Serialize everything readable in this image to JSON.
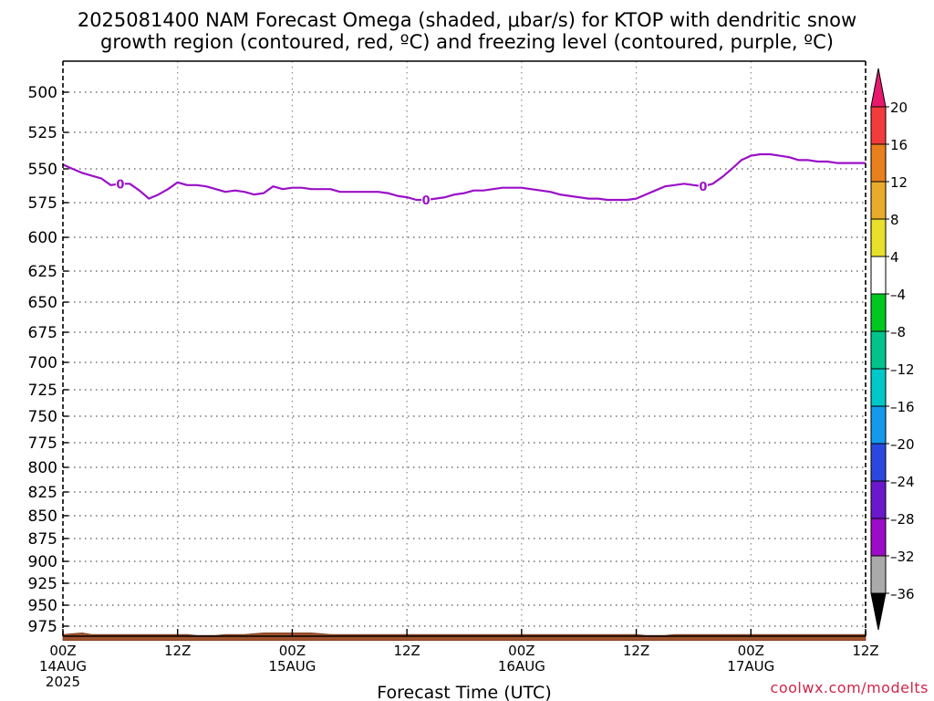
{
  "title_line1": "2025081400 NAM Forecast Omega (shaded, μbar/s) for KTOP with dendritic snow",
  "title_line2": "growth region (contoured, red, ºC) and freezing level (contoured, purple, ºC)",
  "credit": "coolwx.com/modelts",
  "chart_data": {
    "type": "line",
    "title": "2025081400 NAM Forecast Omega (shaded, μbar/s) for KTOP with dendritic snow growth region (contoured, red, ºC) and freezing level (contoured, purple, ºC)",
    "xlabel": "Forecast Time (UTC)",
    "ylabel": "",
    "x_unit": "hours from 2025-08-14 00Z",
    "xlim": [
      0,
      84
    ],
    "ylim": [
      1000,
      470
    ],
    "y_scale": "pressure (hPa), inverted",
    "grid": true,
    "x_ticks": [
      {
        "h": 0,
        "label": "00Z",
        "sub": "14AUG",
        "sub2": "2025"
      },
      {
        "h": 12,
        "label": "12Z",
        "sub": "",
        "sub2": ""
      },
      {
        "h": 24,
        "label": "00Z",
        "sub": "15AUG",
        "sub2": ""
      },
      {
        "h": 36,
        "label": "12Z",
        "sub": "",
        "sub2": ""
      },
      {
        "h": 48,
        "label": "00Z",
        "sub": "16AUG",
        "sub2": ""
      },
      {
        "h": 60,
        "label": "12Z",
        "sub": "",
        "sub2": ""
      },
      {
        "h": 72,
        "label": "00Z",
        "sub": "17AUG",
        "sub2": ""
      },
      {
        "h": 84,
        "label": "12Z",
        "sub": "",
        "sub2": ""
      }
    ],
    "y_ticks": [
      500,
      525,
      550,
      575,
      600,
      625,
      650,
      675,
      700,
      725,
      750,
      775,
      800,
      825,
      850,
      875,
      900,
      925,
      950,
      975
    ],
    "freezing_level": {
      "name": "freezing level",
      "color": "#9a10c8",
      "contour_label": "0",
      "label_at_h": [
        6,
        38,
        67
      ],
      "points": [
        [
          0,
          547
        ],
        [
          1,
          550
        ],
        [
          2,
          553
        ],
        [
          3,
          555
        ],
        [
          4,
          557
        ],
        [
          5,
          562
        ],
        [
          6,
          561
        ],
        [
          7,
          561
        ],
        [
          8,
          566
        ],
        [
          9,
          572
        ],
        [
          10,
          569
        ],
        [
          11,
          565
        ],
        [
          12,
          560
        ],
        [
          13,
          562
        ],
        [
          14,
          562
        ],
        [
          15,
          563
        ],
        [
          16,
          565
        ],
        [
          17,
          567
        ],
        [
          18,
          566
        ],
        [
          19,
          567
        ],
        [
          20,
          569
        ],
        [
          21,
          568
        ],
        [
          22,
          563
        ],
        [
          23,
          565
        ],
        [
          24,
          564
        ],
        [
          25,
          564
        ],
        [
          26,
          565
        ],
        [
          27,
          565
        ],
        [
          28,
          565
        ],
        [
          29,
          567
        ],
        [
          30,
          567
        ],
        [
          31,
          567
        ],
        [
          32,
          567
        ],
        [
          33,
          567
        ],
        [
          34,
          568
        ],
        [
          35,
          570
        ],
        [
          36,
          571
        ],
        [
          37,
          573
        ],
        [
          38,
          573
        ],
        [
          39,
          572
        ],
        [
          40,
          571
        ],
        [
          41,
          569
        ],
        [
          42,
          568
        ],
        [
          43,
          566
        ],
        [
          44,
          566
        ],
        [
          45,
          565
        ],
        [
          46,
          564
        ],
        [
          47,
          564
        ],
        [
          48,
          564
        ],
        [
          49,
          565
        ],
        [
          50,
          566
        ],
        [
          51,
          567
        ],
        [
          52,
          569
        ],
        [
          53,
          570
        ],
        [
          54,
          571
        ],
        [
          55,
          572
        ],
        [
          56,
          572
        ],
        [
          57,
          573
        ],
        [
          58,
          573
        ],
        [
          59,
          573
        ],
        [
          60,
          572
        ],
        [
          61,
          569
        ],
        [
          62,
          566
        ],
        [
          63,
          563
        ],
        [
          64,
          562
        ],
        [
          65,
          561
        ],
        [
          66,
          562
        ],
        [
          67,
          563
        ],
        [
          68,
          561
        ],
        [
          69,
          556
        ],
        [
          70,
          550
        ],
        [
          71,
          544
        ],
        [
          72,
          541
        ],
        [
          73,
          540
        ],
        [
          74,
          540
        ],
        [
          75,
          541
        ],
        [
          76,
          542
        ],
        [
          77,
          544
        ],
        [
          78,
          544
        ],
        [
          79,
          545
        ],
        [
          80,
          545
        ],
        [
          81,
          546
        ],
        [
          82,
          546
        ],
        [
          83,
          546
        ],
        [
          84,
          546
        ]
      ]
    },
    "terrain": {
      "name": "terrain",
      "color": "#a0522d",
      "points": [
        [
          0,
          985
        ],
        [
          1,
          984
        ],
        [
          2,
          983
        ],
        [
          3,
          985
        ],
        [
          8,
          985
        ],
        [
          12,
          985
        ],
        [
          13,
          985
        ],
        [
          14,
          986
        ],
        [
          16,
          986
        ],
        [
          17,
          985
        ],
        [
          19,
          985
        ],
        [
          20,
          984
        ],
        [
          21,
          983
        ],
        [
          26,
          983
        ],
        [
          27,
          984
        ],
        [
          28,
          985
        ],
        [
          40,
          985
        ],
        [
          60,
          985
        ],
        [
          61,
          986
        ],
        [
          63,
          986
        ],
        [
          64,
          985
        ],
        [
          84,
          985
        ]
      ],
      "bottom": 992
    },
    "colorbar": {
      "levels": [
        -36,
        -32,
        -28,
        -24,
        -20,
        -16,
        -12,
        -8,
        -4,
        4,
        8,
        12,
        16,
        20
      ],
      "colors": [
        "#000000",
        "#aaaaaa",
        "#9b0bc8",
        "#6a18cc",
        "#2a48e0",
        "#1499ec",
        "#00c8c8",
        "#00c48c",
        "#00c820",
        "#ffffff",
        "#e8e02a",
        "#e8ac2a",
        "#e8801e",
        "#f23c3c",
        "#e8186e"
      ]
    }
  }
}
